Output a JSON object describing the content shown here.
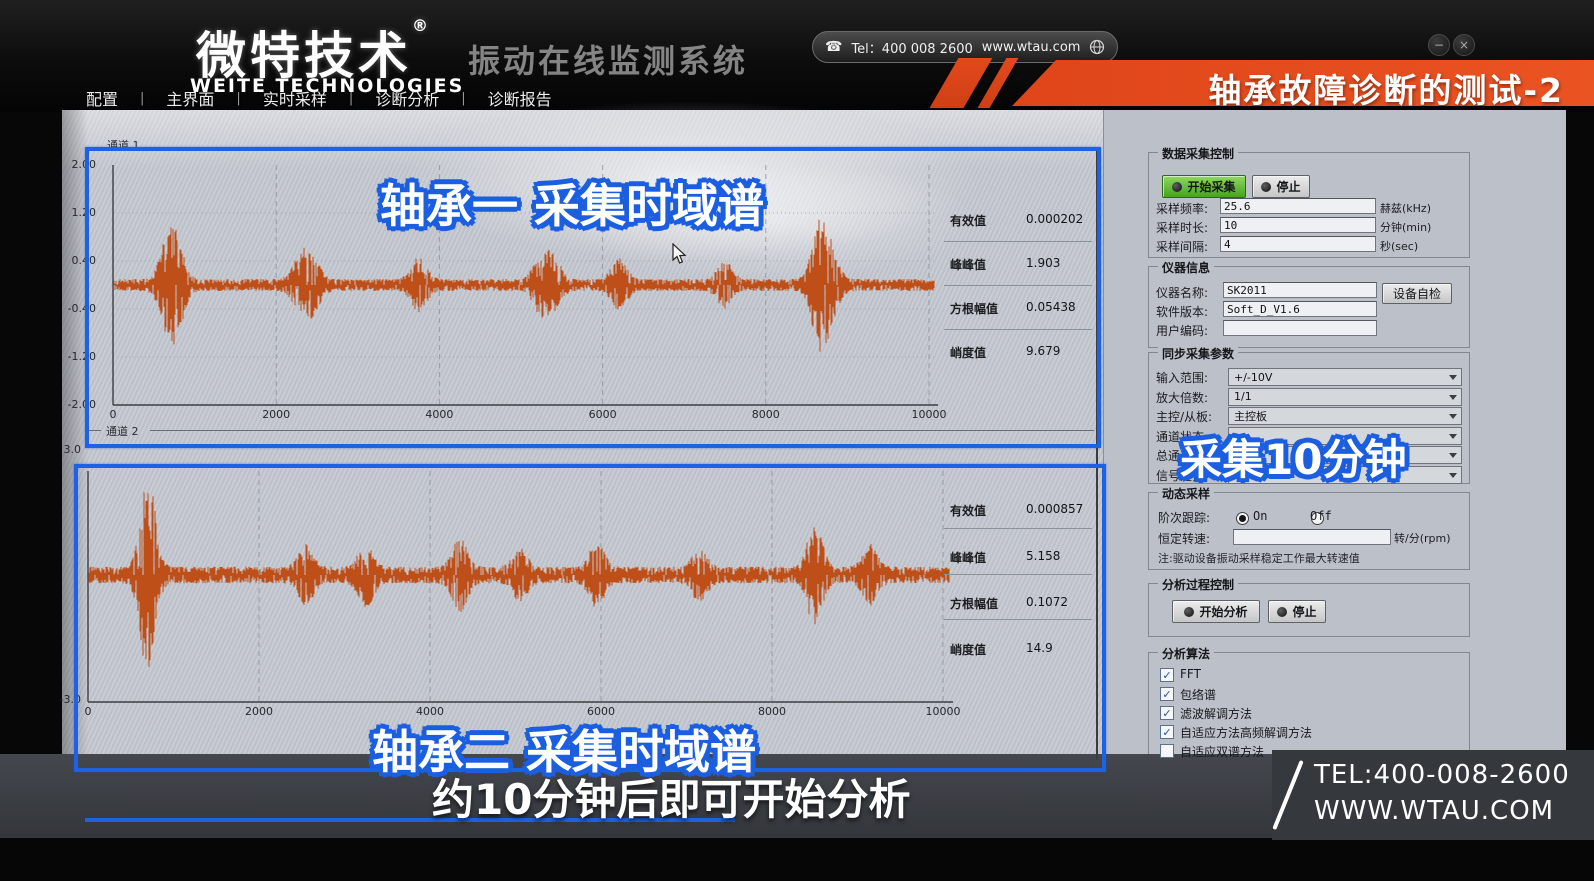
{
  "header": {
    "logo_cn": "微特技术",
    "logo_reg": "®",
    "logo_en": "WEITE TECHNOLOGIES",
    "app_title": "振动在线监测系统",
    "menu": [
      "配置",
      "主界面",
      "实时采样",
      "诊断分析",
      "诊断报告"
    ],
    "menu_separator": "|",
    "contact": {
      "phone_icon": "☎",
      "tel_label": "Tel：400 008 2600",
      "website": "www.wtau.com"
    },
    "window": {
      "minimize": "−",
      "close": "×"
    },
    "banner": "轴承故障诊断的测试-2"
  },
  "annotations": {
    "chart1_title": "轴承一 采集时域谱",
    "chart2_title": "轴承二 采集时域谱",
    "sidebar_note": "采集10分钟",
    "bottom_note": "约10分钟后即可开始分析"
  },
  "footer": {
    "tel": "TEL:400-008-2600",
    "site": "WWW.WTAU.COM"
  },
  "chart_data": [
    {
      "type": "line",
      "channel_label": "通道 1",
      "xlim": [
        0,
        10300
      ],
      "ylim": [
        -2,
        2
      ],
      "x_ticks": [
        "0",
        "2000",
        "4000",
        "6000",
        "8000",
        "10000"
      ],
      "x_tick_values": [
        0,
        2000,
        4000,
        6000,
        8000,
        10000
      ],
      "y_ticks": [
        "2.00",
        "1.20",
        "0.40",
        "-0.40",
        "-1.20",
        "-2.00"
      ],
      "y_tick_values": [
        2.0,
        1.2,
        0.4,
        -0.4,
        -1.2,
        -2.0
      ],
      "line_color": "#bf4f18",
      "noise_amp": 0.1,
      "burst_sigma": 90,
      "seed": 11,
      "bursts": [
        [
          660,
          0.55
        ],
        [
          780,
          0.62
        ],
        [
          2300,
          0.4
        ],
        [
          2450,
          0.34
        ],
        [
          3750,
          0.38
        ],
        [
          5250,
          0.42
        ],
        [
          5400,
          0.34
        ],
        [
          6200,
          0.36
        ],
        [
          7500,
          0.3
        ],
        [
          8650,
          0.88
        ],
        [
          8800,
          0.45
        ]
      ],
      "stats": [
        [
          "有效值",
          "0.000202"
        ],
        [
          "峰峰值",
          "1.903"
        ],
        [
          "方根幅值",
          "0.05438"
        ],
        [
          "峭度值",
          "9.679"
        ]
      ]
    },
    {
      "type": "line",
      "channel_label": "通道 2",
      "xlim": [
        0,
        10300
      ],
      "ylim": [
        -3,
        3
      ],
      "x_ticks": [
        "0",
        "2000",
        "4000",
        "6000",
        "8000",
        "10000"
      ],
      "x_tick_values": [
        0,
        2000,
        4000,
        6000,
        8000,
        10000
      ],
      "y_ticks": [
        "3.0",
        "-3.0"
      ],
      "y_tick_values": [
        3.0,
        -3.0
      ],
      "line_color": "#bf4f18",
      "noise_amp": 0.2,
      "burst_sigma": 85,
      "seed": 23,
      "bursts": [
        [
          700,
          2.2
        ],
        [
          2550,
          0.55
        ],
        [
          3250,
          0.6
        ],
        [
          4350,
          0.7
        ],
        [
          5050,
          0.45
        ],
        [
          5950,
          0.6
        ],
        [
          7150,
          0.45
        ],
        [
          8500,
          1.05
        ],
        [
          9150,
          0.55
        ]
      ],
      "stats": [
        [
          "有效值",
          "0.000857"
        ],
        [
          "峰峰值",
          "5.158"
        ],
        [
          "方根幅值",
          "0.1072"
        ],
        [
          "峭度值",
          "14.9"
        ]
      ]
    }
  ],
  "sidebar": {
    "groups": {
      "acq": {
        "title": "数据采集控制",
        "start_btn": "开始采集",
        "stop_btn": "停止",
        "fields": [
          {
            "label": "采样频率:",
            "value": "25.6",
            "unit": "赫兹(kHz)"
          },
          {
            "label": "采样时长:",
            "value": "10",
            "unit": "分钟(min)"
          },
          {
            "label": "采样间隔:",
            "value": "4",
            "unit": "秒(sec)"
          }
        ]
      },
      "instrument": {
        "title": "仪器信息",
        "fields": [
          {
            "label": "仪器名称:",
            "value": "SK2011",
            "button": "设备自检"
          },
          {
            "label": "软件版本:",
            "value": "Soft_D_V1.6"
          },
          {
            "label": "用户编码:",
            "value": ""
          }
        ]
      },
      "sync": {
        "title": "同步采集参数",
        "fields": [
          {
            "label": "输入范围:",
            "value": "+/-10V"
          },
          {
            "label": "放大倍数:",
            "value": "1/1"
          },
          {
            "label": "主控/从板:",
            "value": "主控板"
          },
          {
            "label": "通道状态:",
            "value": ""
          },
          {
            "label": "总通道数:",
            "value": ""
          },
          {
            "label": "信号选择:",
            "value": ""
          }
        ]
      },
      "dynamic": {
        "title": "动态采样",
        "order_label": "阶次跟踪:",
        "on_label": "On",
        "off_label": "Off",
        "on_selected": true,
        "speed_label": "恒定转速:",
        "speed_value": "",
        "speed_unit": "转/分(rpm)",
        "note": "注:驱动设备振动采样稳定工作最大转速值"
      },
      "analysis_ctl": {
        "title": "分析过程控制",
        "start_btn": "开始分析",
        "stop_btn": "停止"
      },
      "algorithms": {
        "title": "分析算法",
        "check_glyph": "✓",
        "items": [
          {
            "label": "FFT",
            "checked": true
          },
          {
            "label": "包络谱",
            "checked": true
          },
          {
            "label": "滤波解调方法",
            "checked": true
          },
          {
            "label": "自适应方法高频解调方法",
            "checked": true
          },
          {
            "label": "自适应双谱方法",
            "checked": false
          }
        ]
      }
    }
  }
}
